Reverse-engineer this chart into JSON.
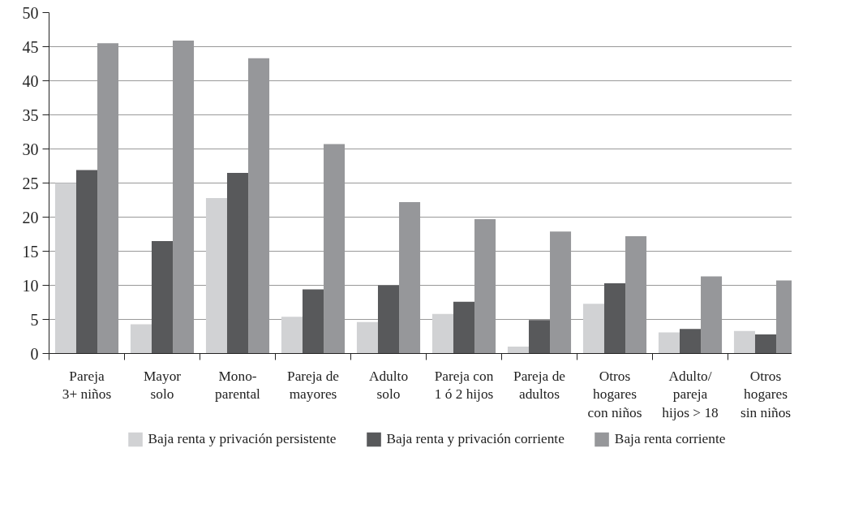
{
  "chart_data": {
    "type": "bar",
    "categories": [
      "Pareja\n3+ niños",
      "Mayor\nsolo",
      "Mono-\nparental",
      "Pareja de\nmayores",
      "Adulto\nsolo",
      "Pareja con\n1 ó 2 hijos",
      "Pareja de\nadultos",
      "Otros\nhogares\ncon niños",
      "Adulto/\npareja\nhijos > 18",
      "Otros\nhogares\nsin niños"
    ],
    "series": [
      {
        "name": "Baja renta y privación persistente",
        "color": "#d1d2d4",
        "values": [
          25.0,
          4.3,
          22.8,
          5.4,
          4.6,
          5.8,
          1.0,
          7.3,
          3.1,
          3.3
        ]
      },
      {
        "name": "Baja renta y privación corriente",
        "color": "#58595b",
        "values": [
          26.9,
          16.5,
          26.5,
          9.4,
          10.0,
          7.6,
          4.9,
          10.3,
          3.6,
          2.8
        ]
      },
      {
        "name": "Baja renta corriente",
        "color": "#96979a",
        "values": [
          45.5,
          45.9,
          43.3,
          30.7,
          22.2,
          19.7,
          17.9,
          17.2,
          11.3,
          10.7
        ]
      }
    ],
    "ylim": [
      0,
      50
    ],
    "yticks": [
      0,
      5,
      10,
      15,
      20,
      25,
      30,
      35,
      40,
      45,
      50
    ],
    "grid": "y",
    "legend": "bottom"
  }
}
